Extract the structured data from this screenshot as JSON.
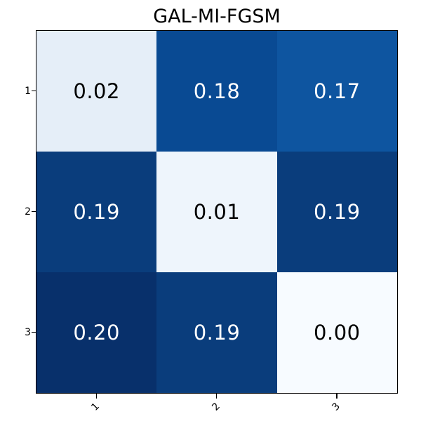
{
  "title": "GAL-MI-FGSM",
  "chart_data": {
    "type": "heatmap",
    "title": "GAL-MI-FGSM",
    "colormap": "Blues",
    "value_range": [
      0,
      0.2
    ],
    "grid": false,
    "legend": "none",
    "x_tick_labels": [
      "1",
      "2",
      "3"
    ],
    "y_tick_labels": [
      "1",
      "2",
      "3"
    ],
    "x_tick_rotation_deg": 45,
    "values": [
      [
        0.02,
        0.18,
        0.17
      ],
      [
        0.19,
        0.01,
        0.19
      ],
      [
        0.2,
        0.19,
        0.0
      ]
    ],
    "cell_labels": [
      [
        "0.02",
        "0.18",
        "0.17"
      ],
      [
        "0.19",
        "0.01",
        "0.19"
      ],
      [
        "0.20",
        "0.19",
        "0.00"
      ]
    ],
    "cell_colors": [
      [
        "#e5eef8",
        "#094a93",
        "#0e55a0"
      ],
      [
        "#0a3d7c",
        "#eef5fc",
        "#0a3d7c"
      ],
      [
        "#08306b",
        "#0a3d7c",
        "#f7fbff"
      ]
    ],
    "cell_text_colors": [
      [
        "#000000",
        "#ffffff",
        "#ffffff"
      ],
      [
        "#ffffff",
        "#000000",
        "#ffffff"
      ],
      [
        "#ffffff",
        "#ffffff",
        "#000000"
      ]
    ]
  },
  "colors": {
    "background": "#ffffff",
    "frame": "#000000",
    "tick": "#000000"
  },
  "layout_values": {
    "note": "3x3 heatmap, no colorbar"
  }
}
